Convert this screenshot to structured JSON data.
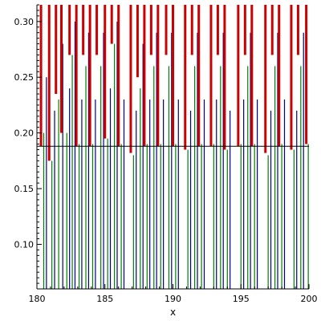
{
  "chart_data": {
    "type": "line",
    "title": "",
    "xlabel": "x",
    "ylabel": "",
    "xlim": [
      180,
      200
    ],
    "ylim": [
      0.06,
      0.315
    ],
    "grid": false,
    "x_ticks": [
      180,
      185,
      190,
      195,
      200
    ],
    "x_tick_labels": [
      "180",
      "185",
      "190",
      "195",
      "200"
    ],
    "y_ticks": [
      0.1,
      0.15,
      0.2,
      0.25,
      0.3
    ],
    "y_tick_labels": [
      "0.10",
      "0.15",
      "0.20",
      "0.25",
      "0.30"
    ],
    "reference_line": {
      "y": 0.188,
      "color": "#000000"
    },
    "colors": {
      "red": "#cc0000",
      "green": "#008000",
      "blue": "#000080"
    },
    "red_segments": [
      {
        "x": 180.3,
        "y0": 0.188,
        "y1": 0.315
      },
      {
        "x": 180.9,
        "y0": 0.175,
        "y1": 0.315
      },
      {
        "x": 181.4,
        "y0": 0.235,
        "y1": 0.315
      },
      {
        "x": 181.8,
        "y0": 0.2,
        "y1": 0.315
      },
      {
        "x": 182.4,
        "y0": 0.27,
        "y1": 0.315
      },
      {
        "x": 182.9,
        "y0": 0.188,
        "y1": 0.315
      },
      {
        "x": 183.4,
        "y0": 0.27,
        "y1": 0.315
      },
      {
        "x": 183.9,
        "y0": 0.188,
        "y1": 0.315
      },
      {
        "x": 184.4,
        "y0": 0.27,
        "y1": 0.315
      },
      {
        "x": 185.0,
        "y0": 0.195,
        "y1": 0.315
      },
      {
        "x": 185.5,
        "y0": 0.28,
        "y1": 0.315
      },
      {
        "x": 186.0,
        "y0": 0.188,
        "y1": 0.315
      },
      {
        "x": 186.9,
        "y0": 0.182,
        "y1": 0.315
      },
      {
        "x": 187.4,
        "y0": 0.25,
        "y1": 0.315
      },
      {
        "x": 187.9,
        "y0": 0.188,
        "y1": 0.315
      },
      {
        "x": 188.4,
        "y0": 0.27,
        "y1": 0.315
      },
      {
        "x": 188.9,
        "y0": 0.188,
        "y1": 0.315
      },
      {
        "x": 189.5,
        "y0": 0.27,
        "y1": 0.315
      },
      {
        "x": 190.0,
        "y0": 0.188,
        "y1": 0.315
      },
      {
        "x": 190.9,
        "y0": 0.185,
        "y1": 0.315
      },
      {
        "x": 191.4,
        "y0": 0.27,
        "y1": 0.315
      },
      {
        "x": 191.9,
        "y0": 0.188,
        "y1": 0.315
      },
      {
        "x": 192.8,
        "y0": 0.188,
        "y1": 0.315
      },
      {
        "x": 193.3,
        "y0": 0.27,
        "y1": 0.315
      },
      {
        "x": 193.8,
        "y0": 0.185,
        "y1": 0.315
      },
      {
        "x": 194.8,
        "y0": 0.188,
        "y1": 0.315
      },
      {
        "x": 195.3,
        "y0": 0.27,
        "y1": 0.315
      },
      {
        "x": 195.8,
        "y0": 0.188,
        "y1": 0.315
      },
      {
        "x": 196.8,
        "y0": 0.182,
        "y1": 0.315
      },
      {
        "x": 197.3,
        "y0": 0.27,
        "y1": 0.315
      },
      {
        "x": 197.8,
        "y0": 0.188,
        "y1": 0.315
      },
      {
        "x": 198.7,
        "y0": 0.185,
        "y1": 0.315
      },
      {
        "x": 199.2,
        "y0": 0.27,
        "y1": 0.315
      },
      {
        "x": 199.8,
        "y0": 0.19,
        "y1": 0.315
      }
    ],
    "green_segments": [
      {
        "x": 180.5,
        "y0": 0.06,
        "y1": 0.2
      },
      {
        "x": 181.1,
        "y0": 0.06,
        "y1": 0.175
      },
      {
        "x": 181.6,
        "y0": 0.06,
        "y1": 0.23
      },
      {
        "x": 182.2,
        "y0": 0.06,
        "y1": 0.2
      },
      {
        "x": 182.6,
        "y0": 0.06,
        "y1": 0.27
      },
      {
        "x": 183.1,
        "y0": 0.06,
        "y1": 0.19
      },
      {
        "x": 183.6,
        "y0": 0.06,
        "y1": 0.26
      },
      {
        "x": 184.1,
        "y0": 0.06,
        "y1": 0.19
      },
      {
        "x": 184.7,
        "y0": 0.06,
        "y1": 0.26
      },
      {
        "x": 185.2,
        "y0": 0.06,
        "y1": 0.195
      },
      {
        "x": 185.7,
        "y0": 0.06,
        "y1": 0.28
      },
      {
        "x": 186.2,
        "y0": 0.06,
        "y1": 0.19
      },
      {
        "x": 187.1,
        "y0": 0.06,
        "y1": 0.18
      },
      {
        "x": 187.6,
        "y0": 0.06,
        "y1": 0.24
      },
      {
        "x": 188.1,
        "y0": 0.06,
        "y1": 0.19
      },
      {
        "x": 188.6,
        "y0": 0.06,
        "y1": 0.26
      },
      {
        "x": 189.1,
        "y0": 0.06,
        "y1": 0.19
      },
      {
        "x": 189.7,
        "y0": 0.06,
        "y1": 0.26
      },
      {
        "x": 190.2,
        "y0": 0.06,
        "y1": 0.19
      },
      {
        "x": 191.1,
        "y0": 0.06,
        "y1": 0.185
      },
      {
        "x": 191.6,
        "y0": 0.06,
        "y1": 0.26
      },
      {
        "x": 192.1,
        "y0": 0.06,
        "y1": 0.19
      },
      {
        "x": 193.0,
        "y0": 0.06,
        "y1": 0.19
      },
      {
        "x": 193.5,
        "y0": 0.06,
        "y1": 0.26
      },
      {
        "x": 194.0,
        "y0": 0.06,
        "y1": 0.185
      },
      {
        "x": 195.0,
        "y0": 0.06,
        "y1": 0.19
      },
      {
        "x": 195.5,
        "y0": 0.06,
        "y1": 0.26
      },
      {
        "x": 196.0,
        "y0": 0.06,
        "y1": 0.19
      },
      {
        "x": 197.0,
        "y0": 0.06,
        "y1": 0.18
      },
      {
        "x": 197.5,
        "y0": 0.06,
        "y1": 0.26
      },
      {
        "x": 198.0,
        "y0": 0.06,
        "y1": 0.19
      },
      {
        "x": 198.9,
        "y0": 0.06,
        "y1": 0.185
      },
      {
        "x": 199.4,
        "y0": 0.06,
        "y1": 0.26
      },
      {
        "x": 199.95,
        "y0": 0.06,
        "y1": 0.19
      }
    ],
    "blue_segments": [
      {
        "x": 180.7,
        "y0": 0.06,
        "y1": 0.25
      },
      {
        "x": 181.3,
        "y0": 0.06,
        "y1": 0.22
      },
      {
        "x": 181.9,
        "y0": 0.06,
        "y1": 0.28
      },
      {
        "x": 182.4,
        "y0": 0.06,
        "y1": 0.24
      },
      {
        "x": 182.8,
        "y0": 0.06,
        "y1": 0.3
      },
      {
        "x": 183.3,
        "y0": 0.06,
        "y1": 0.23
      },
      {
        "x": 183.8,
        "y0": 0.06,
        "y1": 0.29
      },
      {
        "x": 184.3,
        "y0": 0.06,
        "y1": 0.23
      },
      {
        "x": 184.9,
        "y0": 0.06,
        "y1": 0.29
      },
      {
        "x": 185.4,
        "y0": 0.06,
        "y1": 0.24
      },
      {
        "x": 185.9,
        "y0": 0.06,
        "y1": 0.3
      },
      {
        "x": 186.4,
        "y0": 0.06,
        "y1": 0.23
      },
      {
        "x": 187.3,
        "y0": 0.06,
        "y1": 0.22
      },
      {
        "x": 187.8,
        "y0": 0.06,
        "y1": 0.28
      },
      {
        "x": 188.3,
        "y0": 0.06,
        "y1": 0.23
      },
      {
        "x": 188.8,
        "y0": 0.06,
        "y1": 0.29
      },
      {
        "x": 189.3,
        "y0": 0.06,
        "y1": 0.23
      },
      {
        "x": 189.9,
        "y0": 0.06,
        "y1": 0.29
      },
      {
        "x": 190.4,
        "y0": 0.06,
        "y1": 0.23
      },
      {
        "x": 191.3,
        "y0": 0.06,
        "y1": 0.22
      },
      {
        "x": 191.8,
        "y0": 0.06,
        "y1": 0.29
      },
      {
        "x": 192.3,
        "y0": 0.06,
        "y1": 0.23
      },
      {
        "x": 193.2,
        "y0": 0.06,
        "y1": 0.23
      },
      {
        "x": 193.7,
        "y0": 0.06,
        "y1": 0.29
      },
      {
        "x": 194.2,
        "y0": 0.06,
        "y1": 0.22
      },
      {
        "x": 195.2,
        "y0": 0.06,
        "y1": 0.23
      },
      {
        "x": 195.7,
        "y0": 0.06,
        "y1": 0.29
      },
      {
        "x": 196.2,
        "y0": 0.06,
        "y1": 0.23
      },
      {
        "x": 197.2,
        "y0": 0.06,
        "y1": 0.22
      },
      {
        "x": 197.7,
        "y0": 0.06,
        "y1": 0.29
      },
      {
        "x": 198.2,
        "y0": 0.06,
        "y1": 0.23
      },
      {
        "x": 199.1,
        "y0": 0.06,
        "y1": 0.22
      },
      {
        "x": 199.6,
        "y0": 0.06,
        "y1": 0.29
      }
    ]
  }
}
